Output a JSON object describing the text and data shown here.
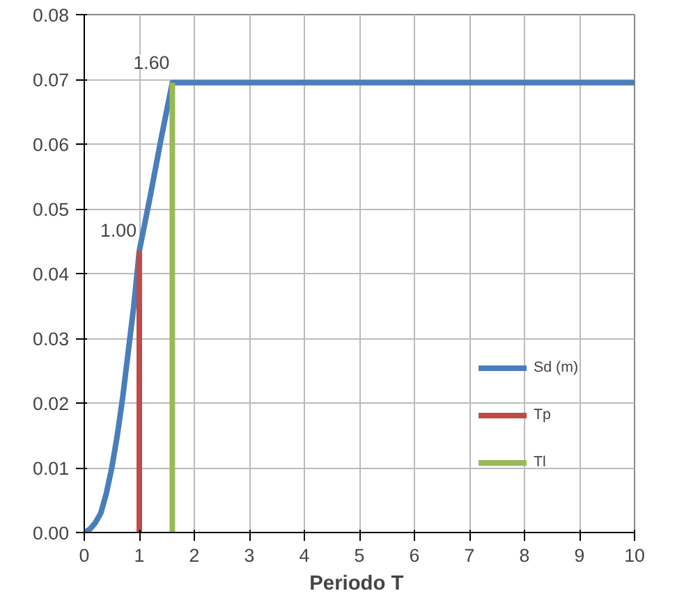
{
  "chart_data": {
    "type": "line",
    "xlabel": "Periodo  T",
    "xlim": [
      0,
      10
    ],
    "xticks": [
      0,
      1,
      2,
      3,
      4,
      5,
      6,
      7,
      8,
      9,
      10
    ],
    "ylim": [
      0,
      0.08
    ],
    "yticks": [
      {
        "value": 0,
        "label": "0.00"
      },
      {
        "value": 0.01,
        "label": "0.01"
      },
      {
        "value": 0.02,
        "label": "0.02"
      },
      {
        "value": 0.03,
        "label": "0.03"
      },
      {
        "value": 0.04,
        "label": "0.04"
      },
      {
        "value": 0.05,
        "label": "0.05"
      },
      {
        "value": 0.06,
        "label": "0.06"
      },
      {
        "value": 0.07,
        "label": "0.07"
      },
      {
        "value": 0.08,
        "label": "0.08"
      }
    ],
    "series": [
      {
        "name": "Sd (m)",
        "color": "#4a7ebb",
        "x": [
          0,
          0.1,
          0.2,
          0.3,
          0.4,
          0.5,
          0.6,
          0.7,
          0.8,
          0.9,
          1.0,
          1.2,
          1.4,
          1.6,
          10
        ],
        "values": [
          0,
          0.0005,
          0.0015,
          0.003,
          0.006,
          0.01,
          0.015,
          0.021,
          0.028,
          0.035,
          0.0435,
          0.052,
          0.061,
          0.0695,
          0.0695
        ]
      },
      {
        "name": "Tp",
        "color": "#be4b48",
        "x": [
          1,
          1
        ],
        "values": [
          0,
          0.0435
        ]
      },
      {
        "name": "Tl",
        "color": "#98b954",
        "x": [
          1.6,
          1.6
        ],
        "values": [
          0,
          0.0695
        ]
      }
    ],
    "annotations": [
      {
        "text": "1.00",
        "x": 1,
        "y": 0.0435
      },
      {
        "text": "1.60",
        "x": 1.6,
        "y": 0.0695
      }
    ],
    "grid": true,
    "legend": "bottom right"
  }
}
